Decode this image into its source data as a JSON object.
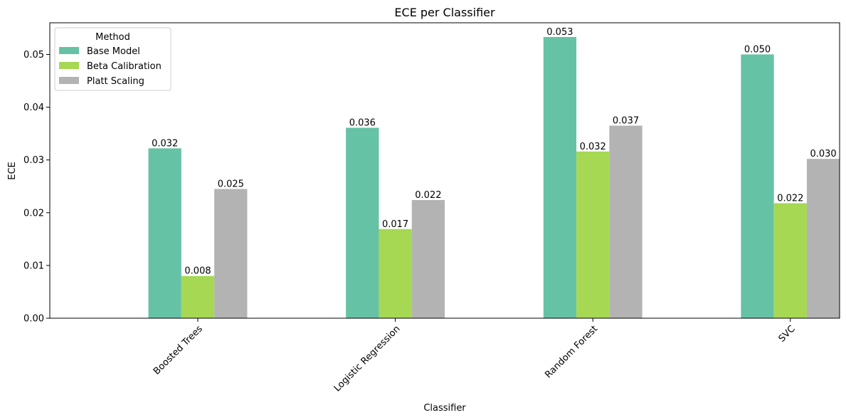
{
  "chart_data": {
    "type": "bar",
    "title": "ECE per Classifier",
    "xlabel": "Classifier",
    "ylabel": "ECE",
    "categories": [
      "Boosted Trees",
      "Logistic Regression",
      "Random Forest",
      "SVC"
    ],
    "series": [
      {
        "name": "Base Model",
        "color": "#66c2a5",
        "values": [
          0.0322,
          0.0361,
          0.0533,
          0.05
        ],
        "labels": [
          "0.032",
          "0.036",
          "0.053",
          "0.050"
        ]
      },
      {
        "name": "Beta Calibration",
        "color": "#a6d854",
        "values": [
          0.008,
          0.0169,
          0.0316,
          0.0218
        ],
        "labels": [
          "0.008",
          "0.017",
          "0.032",
          "0.022"
        ]
      },
      {
        "name": "Platt Scaling",
        "color": "#b3b3b3",
        "values": [
          0.0245,
          0.0224,
          0.0365,
          0.0302
        ],
        "labels": [
          "0.025",
          "0.022",
          "0.037",
          "0.030"
        ]
      }
    ],
    "yticks": [
      "0.00",
      "0.01",
      "0.02",
      "0.03",
      "0.04",
      "0.05"
    ],
    "ylim": [
      0,
      0.056
    ],
    "legend": {
      "title": "Method",
      "placement": "upper-left"
    },
    "grid": false
  }
}
